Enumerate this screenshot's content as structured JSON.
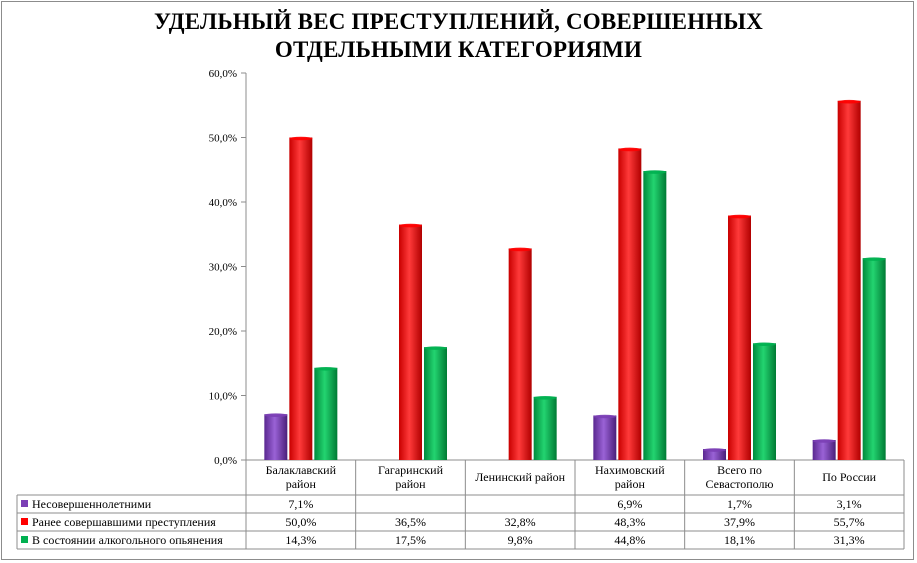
{
  "chart_data": {
    "type": "bar",
    "title": "УДЕЛЬНЫЙ ВЕС ПРЕСТУПЛЕНИЙ, СОВЕРШЕННЫХ ОТДЕЛЬНЫМИ КАТЕГОРИЯМИ",
    "title_lines": [
      "УДЕЛЬНЫЙ ВЕС ПРЕСТУПЛЕНИЙ, СОВЕРШЕННЫХ",
      "ОТДЕЛЬНЫМИ КАТЕГОРИЯМИ"
    ],
    "categories": [
      [
        "Балаклавский",
        "район"
      ],
      [
        "Гагаринский",
        "район"
      ],
      [
        "Ленинский район"
      ],
      [
        "Нахимовский",
        "район"
      ],
      [
        "Всего по",
        "Севастополю"
      ],
      [
        "По России"
      ]
    ],
    "ylim": [
      0,
      60
    ],
    "yticks": [
      0,
      10,
      20,
      30,
      40,
      50,
      60
    ],
    "ytick_labels": [
      "0,0%",
      "10,0%",
      "20,0%",
      "30,0%",
      "40,0%",
      "50,0%",
      "60,0%"
    ],
    "grid": false,
    "legend": "data-table-left",
    "series": [
      {
        "name": "Несовершеннолетними",
        "color": "#7b3fb5",
        "values": [
          7.1,
          null,
          null,
          6.9,
          1.7,
          3.1
        ],
        "labels": [
          "7,1%",
          "",
          "",
          "6,9%",
          "1,7%",
          "3,1%"
        ]
      },
      {
        "name": "Ранее совершавшими преступления",
        "color": "#ff0000",
        "values": [
          50.0,
          36.5,
          32.8,
          48.3,
          37.9,
          55.7
        ],
        "labels": [
          "50,0%",
          "36,5%",
          "32,8%",
          "48,3%",
          "37,9%",
          "55,7%"
        ]
      },
      {
        "name": "В состоянии алкогольного опьянения",
        "color": "#00b050",
        "values": [
          14.3,
          17.5,
          9.8,
          44.8,
          18.1,
          31.3
        ],
        "labels": [
          "14,3%",
          "17,5%",
          "9,8%",
          "44,8%",
          "18,1%",
          "31,3%"
        ]
      }
    ]
  }
}
